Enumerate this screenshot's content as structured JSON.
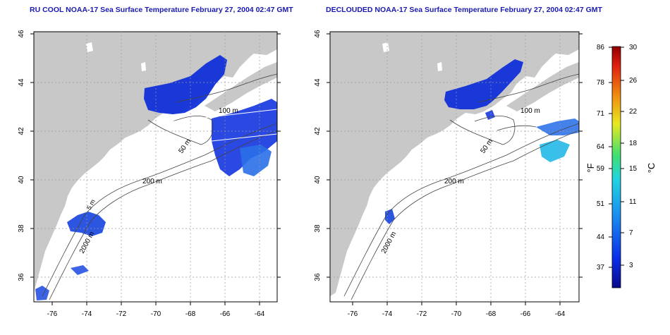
{
  "titles": {
    "left": "RU COOL NOAA-17 Sea Surface Temperature February 27, 2004 02:47 GMT",
    "right": "DECLOUDED NOAA-17 Sea Surface Temperature February 27, 2004 02:47 GMT"
  },
  "axes": {
    "lon_ticks": [
      "-76",
      "-74",
      "-72",
      "-70",
      "-68",
      "-66",
      "-64"
    ],
    "lat_ticks": [
      "46",
      "44",
      "42",
      "40",
      "38",
      "36"
    ]
  },
  "contour_labels": [
    "100 m",
    "50 m",
    "200 m",
    "2000 m",
    "5 m"
  ],
  "colorbar": {
    "unit_f": "°F",
    "unit_c": "°C",
    "f_labels": [
      "86",
      "78",
      "71",
      "64",
      "59",
      "51",
      "44",
      "37"
    ],
    "c_labels": [
      "30",
      "26",
      "22",
      "18",
      "15",
      "11",
      "7",
      "3"
    ]
  },
  "colors": {
    "land": "#c8c8c8",
    "ocean": "#ffffff",
    "sst_cold": "#1030d8",
    "title": "#1a1ab0"
  }
}
